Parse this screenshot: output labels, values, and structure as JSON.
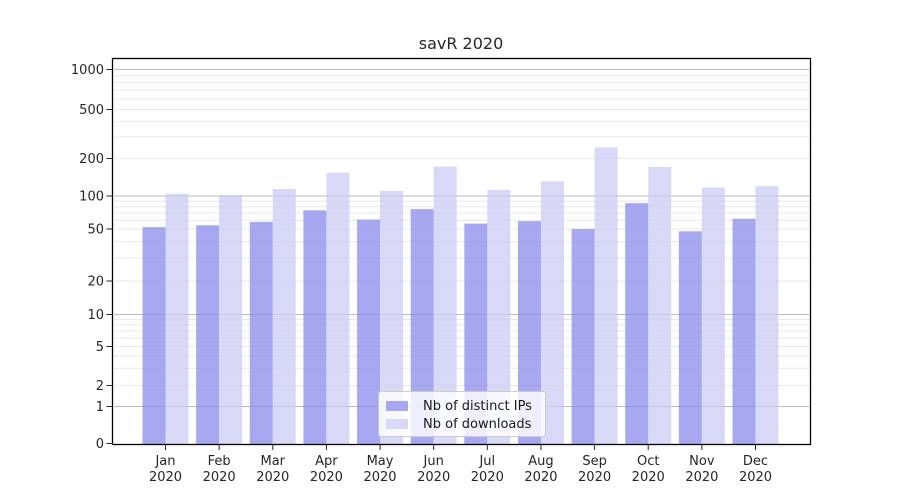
{
  "title": "savR 2020",
  "chart_data": {
    "type": "bar",
    "title": "savR 2020",
    "scale": "pseudo-log",
    "grid": "horizontal major+minor",
    "legend_position": "inside-bottom-center",
    "ylim": [
      0,
      1200
    ],
    "y_ticks": [
      0,
      1,
      2,
      5,
      10,
      20,
      50,
      100,
      200,
      500,
      1000
    ],
    "categories": [
      {
        "month": "Jan",
        "year": "2020"
      },
      {
        "month": "Feb",
        "year": "2020"
      },
      {
        "month": "Mar",
        "year": "2020"
      },
      {
        "month": "Apr",
        "year": "2020"
      },
      {
        "month": "May",
        "year": "2020"
      },
      {
        "month": "Jun",
        "year": "2020"
      },
      {
        "month": "Jul",
        "year": "2020"
      },
      {
        "month": "Aug",
        "year": "2020"
      },
      {
        "month": "Sep",
        "year": "2020"
      },
      {
        "month": "Oct",
        "year": "2020"
      },
      {
        "month": "Nov",
        "year": "2020"
      },
      {
        "month": "Dec",
        "year": "2020"
      }
    ],
    "series": [
      {
        "name": "Nb of distinct IPs",
        "color": "#a8a8f0",
        "values": [
          52,
          54,
          58,
          74,
          61,
          76,
          56,
          59,
          50,
          86,
          48,
          62
        ]
      },
      {
        "name": "Nb of downloads",
        "color": "#d8d8f7",
        "values": [
          104,
          102,
          114,
          154,
          110,
          172,
          112,
          131,
          246,
          171,
          117,
          120
        ]
      }
    ]
  }
}
